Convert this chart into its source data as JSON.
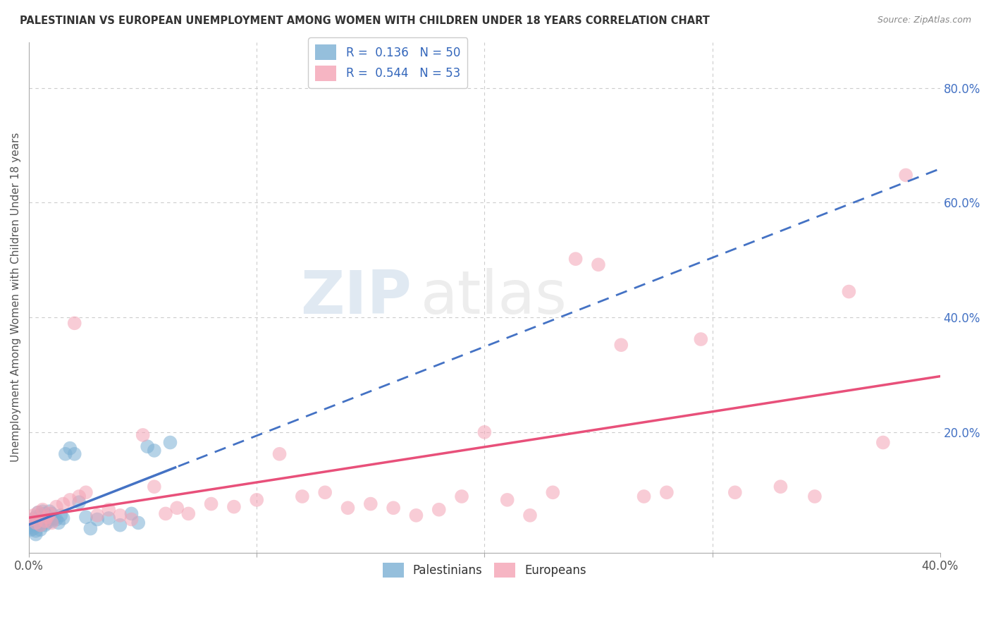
{
  "title": "PALESTINIAN VS EUROPEAN UNEMPLOYMENT AMONG WOMEN WITH CHILDREN UNDER 18 YEARS CORRELATION CHART",
  "source": "Source: ZipAtlas.com",
  "ylabel": "Unemployment Among Women with Children Under 18 years",
  "xlim": [
    0.0,
    0.4
  ],
  "ylim": [
    -0.01,
    0.88
  ],
  "xtick_positions": [
    0.0,
    0.1,
    0.2,
    0.3,
    0.4
  ],
  "xtick_labels": [
    "0.0%",
    "",
    "",
    "",
    "40.0%"
  ],
  "yticks_right": [
    0.2,
    0.4,
    0.6,
    0.8
  ],
  "ytick_labels_right": [
    "20.0%",
    "40.0%",
    "60.0%",
    "80.0%"
  ],
  "palestinian_color": "#7bafd4",
  "european_color": "#f4a3b5",
  "palestinian_line_color": "#4472c4",
  "european_line_color": "#e8507a",
  "palestinian_R": 0.136,
  "palestinian_N": 50,
  "european_R": 0.544,
  "european_N": 53,
  "legend_label_1": "Palestinians",
  "legend_label_2": "Europeans",
  "watermark_zip": "ZIP",
  "watermark_atlas": "atlas",
  "background_color": "#ffffff",
  "grid_color": "#cccccc",
  "palestinian_x": [
    0.001,
    0.001,
    0.001,
    0.002,
    0.002,
    0.002,
    0.002,
    0.003,
    0.003,
    0.003,
    0.003,
    0.003,
    0.004,
    0.004,
    0.004,
    0.005,
    0.005,
    0.005,
    0.005,
    0.006,
    0.006,
    0.006,
    0.007,
    0.007,
    0.007,
    0.008,
    0.008,
    0.009,
    0.009,
    0.01,
    0.01,
    0.011,
    0.012,
    0.013,
    0.014,
    0.015,
    0.016,
    0.018,
    0.02,
    0.022,
    0.025,
    0.027,
    0.03,
    0.035,
    0.04,
    0.045,
    0.048,
    0.052,
    0.055,
    0.062
  ],
  "palestinian_y": [
    0.04,
    0.035,
    0.03,
    0.048,
    0.042,
    0.038,
    0.032,
    0.052,
    0.045,
    0.038,
    0.028,
    0.022,
    0.06,
    0.05,
    0.04,
    0.055,
    0.048,
    0.038,
    0.03,
    0.062,
    0.052,
    0.042,
    0.058,
    0.048,
    0.038,
    0.055,
    0.042,
    0.062,
    0.048,
    0.058,
    0.045,
    0.05,
    0.048,
    0.042,
    0.055,
    0.05,
    0.162,
    0.172,
    0.162,
    0.078,
    0.052,
    0.032,
    0.048,
    0.05,
    0.038,
    0.058,
    0.042,
    0.175,
    0.168,
    0.182
  ],
  "european_x": [
    0.001,
    0.002,
    0.003,
    0.004,
    0.005,
    0.006,
    0.007,
    0.008,
    0.009,
    0.01,
    0.012,
    0.015,
    0.018,
    0.02,
    0.022,
    0.025,
    0.03,
    0.035,
    0.04,
    0.045,
    0.05,
    0.055,
    0.06,
    0.065,
    0.07,
    0.08,
    0.09,
    0.1,
    0.11,
    0.12,
    0.13,
    0.14,
    0.15,
    0.16,
    0.17,
    0.18,
    0.19,
    0.2,
    0.21,
    0.22,
    0.23,
    0.24,
    0.25,
    0.26,
    0.27,
    0.28,
    0.295,
    0.31,
    0.33,
    0.345,
    0.36,
    0.375,
    0.385
  ],
  "european_y": [
    0.048,
    0.055,
    0.042,
    0.06,
    0.038,
    0.065,
    0.045,
    0.052,
    0.058,
    0.042,
    0.07,
    0.075,
    0.082,
    0.39,
    0.088,
    0.095,
    0.055,
    0.065,
    0.055,
    0.048,
    0.195,
    0.105,
    0.058,
    0.068,
    0.058,
    0.075,
    0.07,
    0.082,
    0.162,
    0.088,
    0.095,
    0.068,
    0.075,
    0.068,
    0.055,
    0.065,
    0.088,
    0.2,
    0.082,
    0.055,
    0.095,
    0.502,
    0.492,
    0.352,
    0.088,
    0.095,
    0.362,
    0.095,
    0.105,
    0.088,
    0.445,
    0.182,
    0.648
  ]
}
